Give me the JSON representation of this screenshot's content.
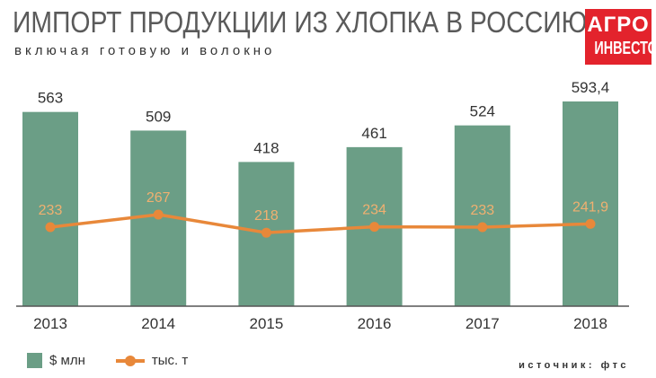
{
  "header": {
    "title": "ИМПОРТ ПРОДУКЦИИ ИЗ ХЛОПКА В РОССИЮ",
    "subtitle": "включая готовую и волокно"
  },
  "logo": {
    "line1": "АГРО",
    "line2": "ИНВЕСТОР"
  },
  "source": "источник: фтс",
  "colors": {
    "bar": "#6b9e86",
    "line": "#e8883a",
    "line_label": "#f0b070",
    "axis": "#555555",
    "text": "#333333",
    "logo_bg": "#e3232c"
  },
  "chart_data": {
    "type": "bar",
    "categories": [
      "2013",
      "2014",
      "2015",
      "2016",
      "2017",
      "2018"
    ],
    "series": [
      {
        "name": "$ млн",
        "type": "bar",
        "values": [
          563,
          509,
          418,
          461,
          524,
          593.4
        ],
        "labels": [
          "563",
          "509",
          "418",
          "461",
          "524",
          "593,4"
        ]
      },
      {
        "name": "тыс. т",
        "type": "line",
        "values": [
          233,
          267,
          218,
          234,
          233,
          241.9
        ],
        "labels": [
          "233",
          "267",
          "218",
          "234",
          "233",
          "241,9"
        ]
      }
    ],
    "title": "ИМПОРТ ПРОДУКЦИИ ИЗ ХЛОПКА В РОССИЮ",
    "subtitle": "включая готовую и волокно",
    "legend_position": "bottom-left",
    "grid": false
  }
}
